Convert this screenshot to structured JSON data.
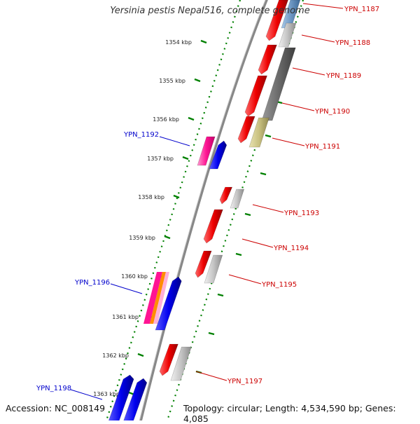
{
  "header": {
    "title": "Yersinia pestis Nepal516, complete genome"
  },
  "footer": {
    "accession": "Accession: NC_008149",
    "topology": "Topology: circular; Length: 4,534,590 bp; Genes: 4,085"
  },
  "scale": {
    "unit": "kbp",
    "ticks": [
      "1354 kbp",
      "1355 kbp",
      "1356 kbp",
      "1357 kbp",
      "1358 kbp",
      "1359 kbp",
      "1360 kbp",
      "1361 kbp",
      "1362 kbp",
      "1363 kbp"
    ]
  },
  "colors": {
    "forward_label": "#0000cc",
    "reverse_label": "#cc0000",
    "forward_gene": "#0000ee",
    "reverse_gene": "#ee0000",
    "magenta": "#ff1493",
    "orange": "#ff8c00",
    "grey": "#bbbbbb",
    "dark_grey": "#666666",
    "olive": "#c8c080",
    "tick_green": "#008000",
    "backbone": "#888888"
  },
  "gene_labels": {
    "forward": [
      "YPN_1192",
      "YPN_1196",
      "YPN_1198"
    ],
    "reverse": [
      "YPN_1187",
      "YPN_1188",
      "YPN_1189",
      "YPN_1190",
      "YPN_1191",
      "YPN_1193",
      "YPN_1194",
      "YPN_1195",
      "YPN_1197"
    ]
  }
}
